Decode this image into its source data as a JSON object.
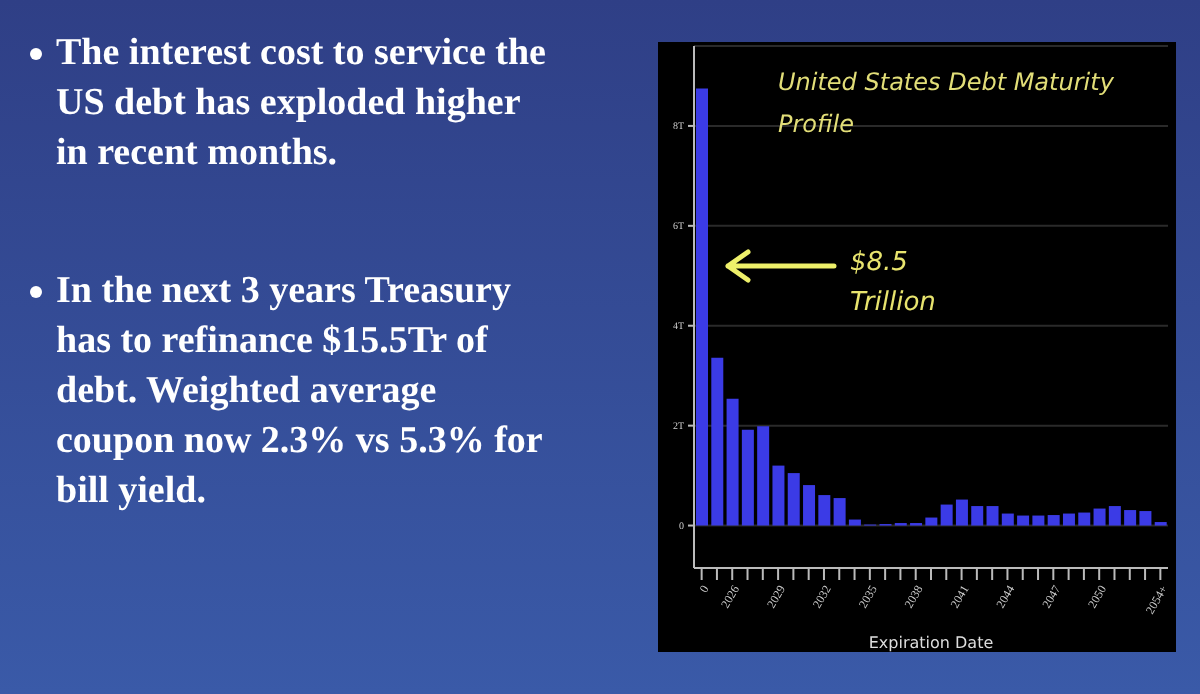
{
  "chart_data": {
    "type": "bar",
    "title": "United States Debt Maturity Profile",
    "xlabel": "Expiration Date",
    "categories": [
      "0",
      null,
      "2026",
      null,
      null,
      "2029",
      null,
      null,
      "2032",
      null,
      null,
      "2035",
      null,
      null,
      "2038",
      null,
      null,
      "2041",
      null,
      null,
      "2044",
      null,
      null,
      "2047",
      null,
      null,
      "2050",
      null,
      null,
      null,
      "2054+"
    ],
    "values": [
      8.75,
      3.36,
      2.54,
      1.92,
      1.99,
      1.2,
      1.05,
      0.81,
      0.61,
      0.55,
      0.12,
      0.02,
      0.03,
      0.05,
      0.05,
      0.16,
      0.42,
      0.52,
      0.39,
      0.39,
      0.24,
      0.2,
      0.2,
      0.21,
      0.24,
      0.26,
      0.34,
      0.39,
      0.31,
      0.29,
      0.07
    ],
    "color": "#3b3be6",
    "ylim": [
      -0.85,
      9.6
    ],
    "yticks": [
      {
        "value": 0,
        "label": "0"
      },
      {
        "value": 2,
        "label": "2T"
      },
      {
        "value": 4,
        "label": "4T"
      },
      {
        "value": 6,
        "label": "6T"
      },
      {
        "value": 8,
        "label": "8T"
      }
    ],
    "grid": "y",
    "annotations": [
      "The interest cost to service the US debt has exploded higher in recent months.",
      "In the next 3 years Treasury has to refinance $15.5Tr of debt. Weighted average coupon now 2.3% vs 5.3% for bill yield.",
      "$8.5 Trillion"
    ]
  }
}
